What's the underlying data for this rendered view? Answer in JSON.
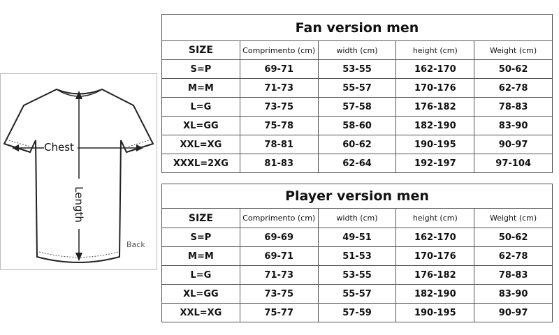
{
  "diagram": {
    "chest_label": "Chest",
    "length_label": "Length",
    "back_label": "Back"
  },
  "fan": {
    "title": "Fan version men",
    "headers": [
      "SIZE",
      "Comprimento (cm)",
      "width (cm)",
      "height (cm)",
      "Weight (cm)"
    ],
    "rows": [
      [
        "S=P",
        "69-71",
        "53-55",
        "162-170",
        "50-62"
      ],
      [
        "M=M",
        "71-73",
        "55-57",
        "170-176",
        "62-78"
      ],
      [
        "L=G",
        "73-75",
        "57-58",
        "176-182",
        "78-83"
      ],
      [
        "XL=GG",
        "75-78",
        "58-60",
        "182-190",
        "83-90"
      ],
      [
        "XXL=XG",
        "78-81",
        "60-62",
        "190-195",
        "90-97"
      ],
      [
        "XXXL=2XG",
        "81-83",
        "62-64",
        "192-197",
        "97-104"
      ]
    ]
  },
  "player": {
    "title": "Player version men",
    "headers": [
      "SIZE",
      "Comprimento (cm)",
      "width (cm)",
      "height (cm)",
      "Weight (cm)"
    ],
    "rows": [
      [
        "S=P",
        "69-69",
        "49-51",
        "162-170",
        "50-62"
      ],
      [
        "M=M",
        "69-71",
        "51-53",
        "170-176",
        "62-78"
      ],
      [
        "L=G",
        "71-73",
        "53-55",
        "176-182",
        "78-83"
      ],
      [
        "XL=GG",
        "73-75",
        "55-57",
        "182-190",
        "83-90"
      ],
      [
        "XXL=XG",
        "75-77",
        "57-59",
        "190-195",
        "90-97"
      ]
    ]
  }
}
